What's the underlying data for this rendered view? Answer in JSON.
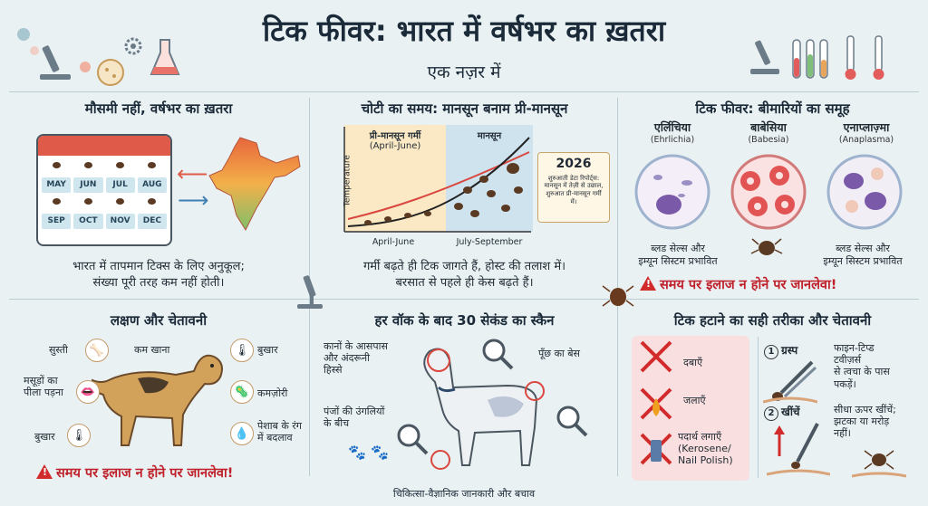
{
  "header": {
    "title": "टिक फीवर: भारत में वर्षभर का ख़तरा",
    "subtitle": "एक नज़र में"
  },
  "panel_seasonal": {
    "title": "मौसमी नहीं, वर्षभर का ख़तरा",
    "months": [
      "MAY",
      "JUN",
      "JUL",
      "AUG",
      "SEP",
      "OCT",
      "NOV",
      "DEC"
    ],
    "text_line1": "भारत में तापमान टिक्स के लिए अनुकूल;",
    "text_line2": "संख्या पूरी तरह कम नहीं होती।"
  },
  "panel_peak": {
    "title": "चोटी का समय: मानसून बनाम प्री-मानसून",
    "premonsoon_label": "प्री-मानसून गर्मी",
    "premonsoon_sub": "(April-June)",
    "monsoon_label": "मानसून",
    "y_axis": "Temperature",
    "x_left": "April-June",
    "x_right": "July-September",
    "note_year": "2026",
    "note_text": "शुरुआती डेटा रिपोर्ट्स: मानसून में तेज़ी से उछाल, शुरुआत प्री-मानसून गर्मी में।",
    "text_line1": "गर्मी बढ़ते ही टिक जागते हैं, होस्ट की तलाश में।",
    "text_line2": "बरसात से पहले ही केस बढ़ते हैं।"
  },
  "panel_diseases": {
    "title": "टिक फीवर: बीमारियों का समूह",
    "diseases": [
      {
        "name": "एर्लिचिया",
        "latin": "(Ehrlichia)"
      },
      {
        "name": "बाबेसिया",
        "latin": "(Babesia)"
      },
      {
        "name": "एनाप्लाज़्मा",
        "latin": "(Anaplasma)"
      }
    ],
    "left_effect_1": "ब्लड सेल्स और",
    "left_effect_2": "इम्यून सिस्टम प्रभावित",
    "right_effect_1": "ब्लड सेल्स और",
    "right_effect_2": "इम्यून सिस्टम प्रभावित",
    "warning": "समय पर इलाज न होने पर जानलेवा!"
  },
  "panel_symptoms": {
    "title": "लक्षण और चेतावनी",
    "labels": {
      "lethargy": "सुस्ती",
      "low_appetite": "कम खाना",
      "fever_top": "बुखार",
      "gums_1": "मसूड़ों का",
      "gums_2": "पीला पड़ना",
      "weakness": "कमज़ोरी",
      "fever_bottom": "बुखार",
      "urine_1": "पेशाब के रंग",
      "urine_2": "में बदलाव"
    },
    "warning": "समय पर इलाज न होने पर जानलेवा!"
  },
  "panel_scan": {
    "title": "हर वॉक के बाद 30 सेकंड का स्कैन",
    "ears_1": "कानों के आसपास",
    "ears_2": "और अंदरूनी",
    "ears_3": "हिस्से",
    "tail": "पूँछ का बेस",
    "paws_1": "पंजों की उंगलियों",
    "paws_2": "के बीच"
  },
  "panel_removal": {
    "title": "टिक हटाने का सही तरीका और चेतावनी",
    "dont_1": "दबाएँ",
    "dont_2": "जलाएँ",
    "dont_3a": "पदार्थ लगाएँ",
    "dont_3b": "(Kerosene/",
    "dont_3c": "Nail Polish)",
    "step1_num": "1",
    "step1_label": "ग्रस्प",
    "step1_text_1": "फाइन-टिप्ड",
    "step1_text_2": "टवीज़र्स",
    "step1_text_3": "से त्वचा के पास",
    "step1_text_4": "पकड़ें।",
    "step2_num": "2",
    "step2_label": "खींचें",
    "step2_text_1": "सीधा ऊपर खींचें;",
    "step2_text_2": "झटका या मरोड़",
    "step2_text_3": "नहीं।"
  },
  "footer": "चिकित्सा-वैज्ञानिक जानकारी और बचाव",
  "colors": {
    "background": "#e9f1f3",
    "warning_red": "#c0202a",
    "premonsoon_bg": "#fbe9c6",
    "monsoon_bg": "#cfe3ef"
  }
}
